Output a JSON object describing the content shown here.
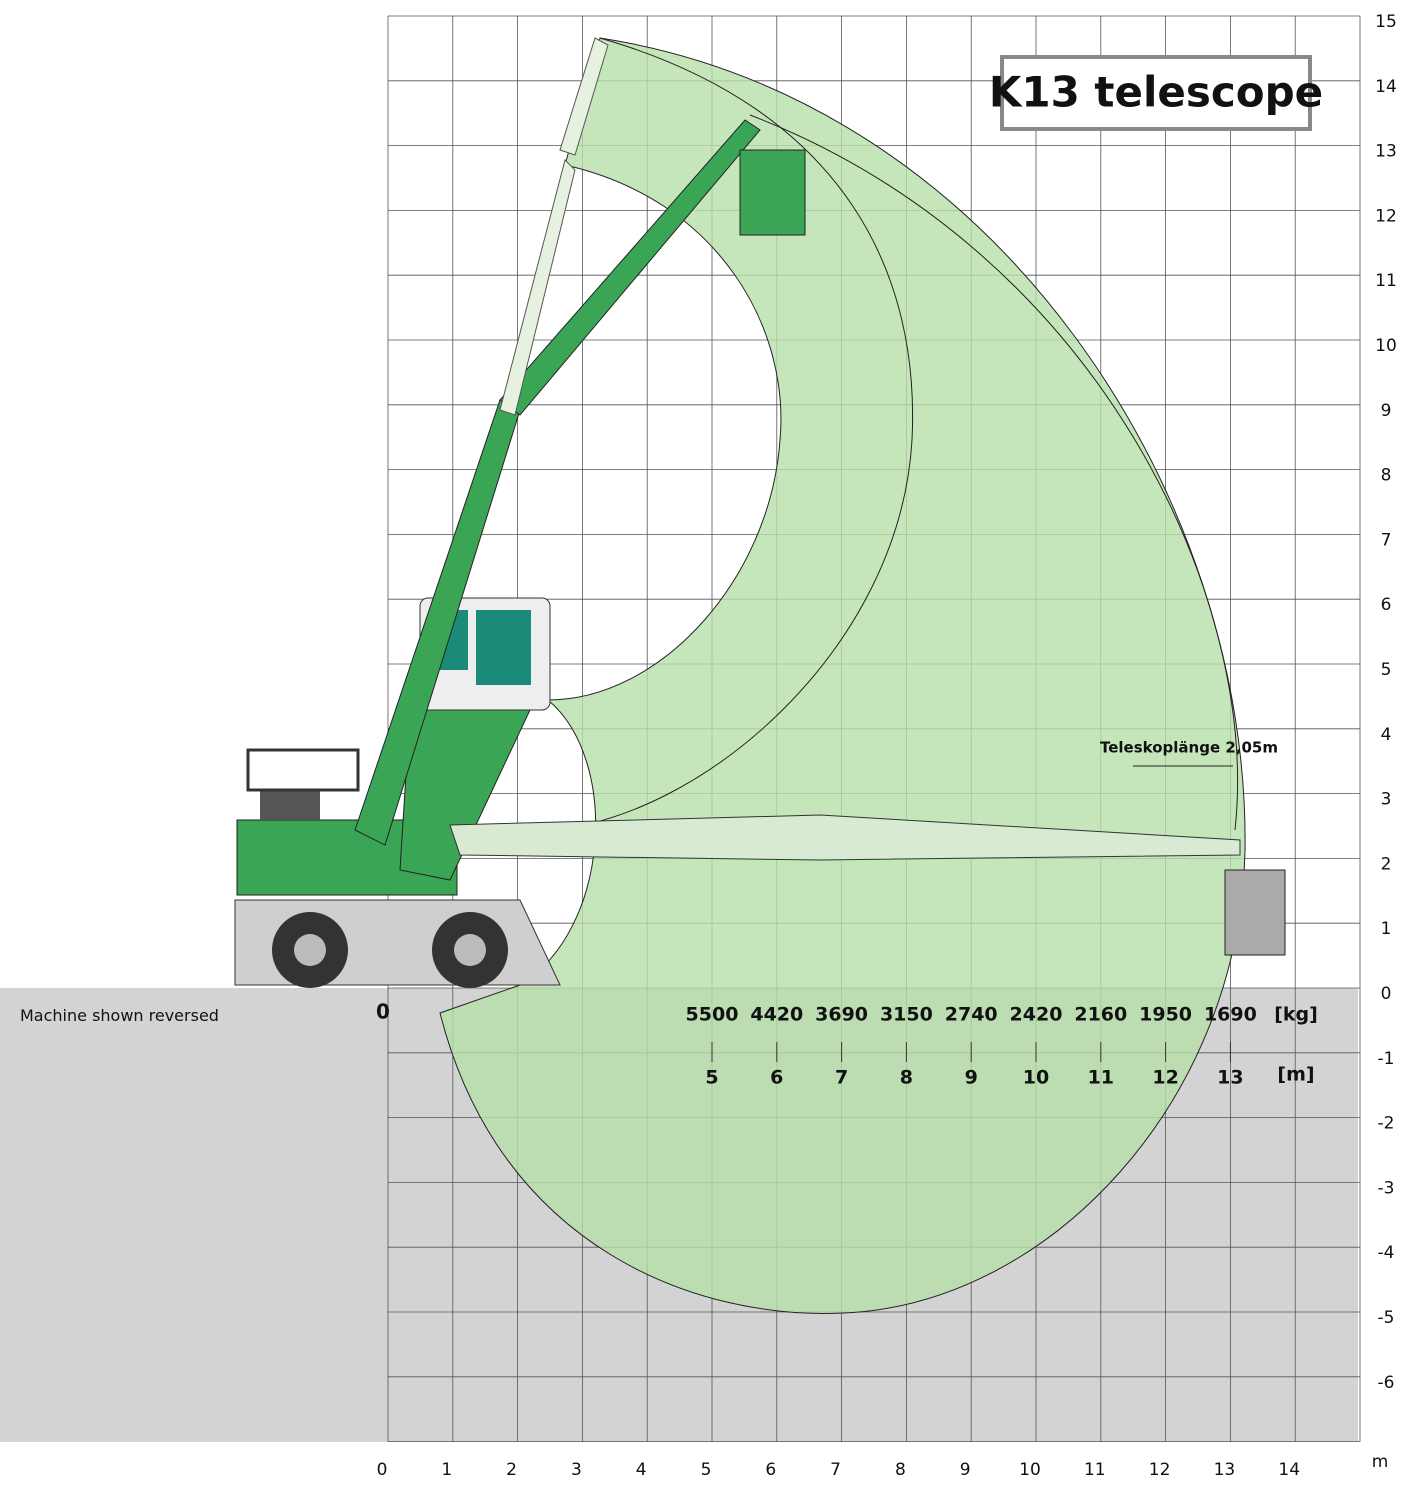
{
  "title": "K13 telescope",
  "note": "Machine shown reversed",
  "telescope_label": "Teleskoplänge 2,05m",
  "origin_label": "0",
  "x_axis": {
    "ticks": [
      0,
      1,
      2,
      3,
      4,
      5,
      6,
      7,
      8,
      9,
      10,
      11,
      12,
      13,
      14
    ],
    "unit": "m"
  },
  "y_axis": {
    "ticks": [
      15,
      14,
      13,
      12,
      11,
      10,
      9,
      8,
      7,
      6,
      5,
      4,
      3,
      2,
      1,
      0,
      -1,
      -2,
      -3,
      -4,
      -5,
      -6
    ]
  },
  "load_table": {
    "loads": [
      5500,
      4420,
      3690,
      3150,
      2740,
      2420,
      2160,
      1950,
      1690
    ],
    "load_unit": "[kg]",
    "radii": [
      5,
      6,
      7,
      8,
      9,
      10,
      11,
      12,
      13
    ],
    "radius_unit": "[m]"
  }
}
